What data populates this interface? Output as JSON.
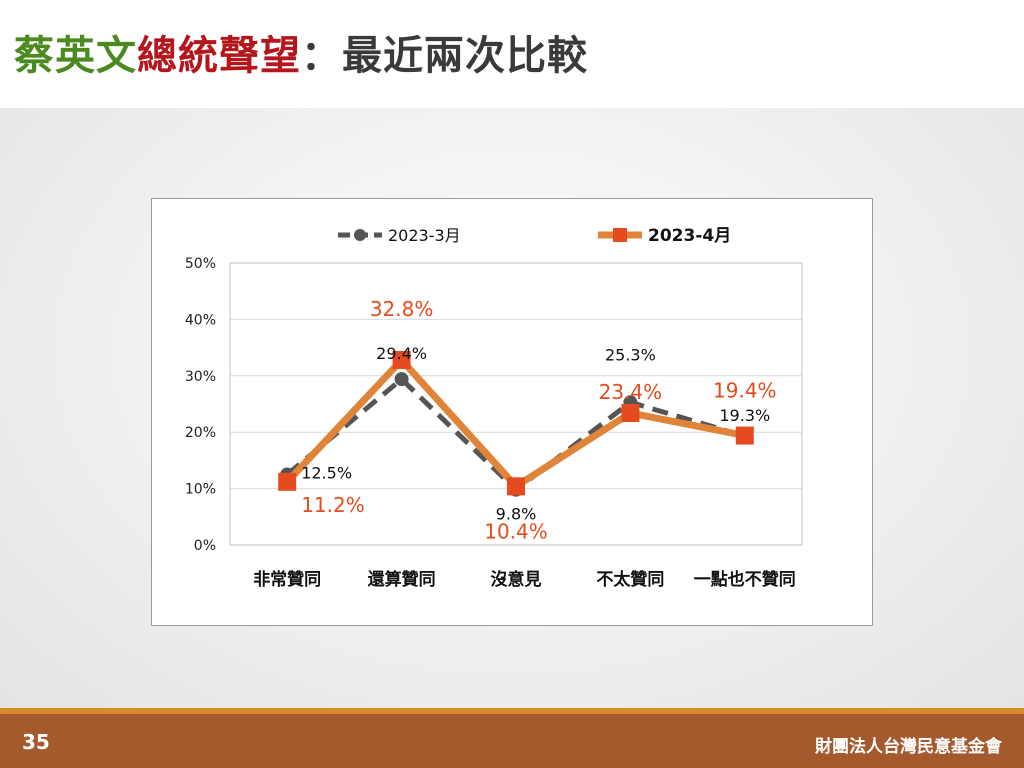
{
  "slide": {
    "title_part1": "蔡英文",
    "title_part2": "總統聲望",
    "title_part3": "：最近兩次比較",
    "page_number": "35",
    "organization": "財團法人台灣民意基金會"
  },
  "colors": {
    "title_green": "#4a8a1f",
    "title_red": "#b5161b",
    "title_dark": "#3a3a3a",
    "series1": "#555555",
    "series2_line": "#e0843a",
    "series2_marker": "#e64b1f",
    "series2_label": "#e64b1f"
  },
  "chart_data": {
    "type": "line",
    "categories": [
      "非常贊同",
      "還算贊同",
      "沒意見",
      "不太贊同",
      "一點也不贊同"
    ],
    "ylim": [
      0,
      50
    ],
    "yticks": [
      0,
      10,
      20,
      30,
      40,
      50
    ],
    "ytick_labels": [
      "0%",
      "10%",
      "20%",
      "30%",
      "40%",
      "50%"
    ],
    "legend_position": "top",
    "series": [
      {
        "name": "2023-3月",
        "values": [
          12.5,
          29.4,
          9.8,
          25.3,
          19.3
        ],
        "labels": [
          "12.5%",
          "29.4%",
          "9.8%",
          "25.3%",
          "19.3%"
        ],
        "style": "dashed"
      },
      {
        "name": "2023-4月",
        "values": [
          11.2,
          32.8,
          10.4,
          23.4,
          19.4
        ],
        "labels": [
          "11.2%",
          "32.8%",
          "10.4%",
          "23.4%",
          "19.4%"
        ],
        "style": "solid"
      }
    ]
  }
}
